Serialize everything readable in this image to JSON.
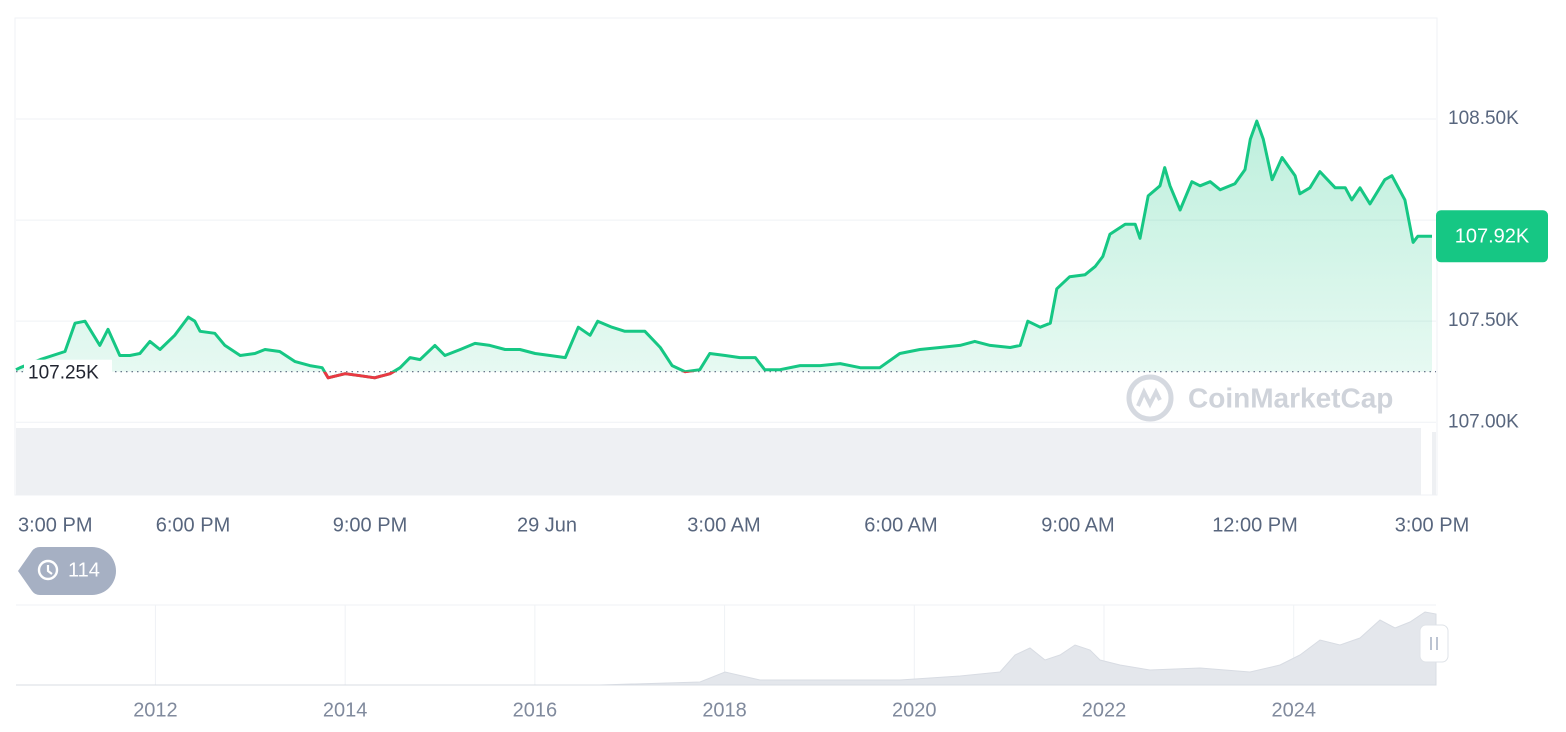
{
  "chart_data": {
    "type": "line",
    "x": [
      0,
      0.07,
      0.41,
      0.83,
      1.0,
      1.17,
      1.42,
      1.56,
      1.76,
      1.93,
      2.1,
      2.27,
      2.44,
      2.69,
      2.92,
      3.03,
      3.12,
      3.37,
      3.54,
      3.8,
      4.05,
      4.22,
      4.47,
      4.73,
      4.98,
      5.19,
      5.29,
      5.58,
      5.83,
      6.08,
      6.34,
      6.51,
      6.68,
      6.85,
      7.1,
      7.27,
      7.53,
      7.78,
      8.03,
      8.29,
      8.54,
      8.8,
      9.05,
      9.31,
      9.53,
      9.73,
      9.86,
      10.1,
      10.32,
      10.66,
      10.92,
      11.12,
      11.34,
      11.59,
      11.76,
      12.02,
      12.27,
      12.53,
      12.69,
      12.95,
      13.29,
      13.63,
      13.97,
      14.31,
      14.64,
      14.98,
      15.32,
      15.66,
      16.0,
      16.25,
      16.51,
      16.85,
      17.02,
      17.15,
      17.36,
      17.53,
      17.64,
      17.86,
      18.12,
      18.29,
      18.42,
      18.54,
      18.8,
      18.97,
      19.05,
      19.19,
      19.39,
      19.47,
      19.56,
      19.73,
      19.93,
      20.07,
      20.24,
      20.41,
      20.66,
      20.83,
      20.92,
      21.03,
      21.14,
      21.29,
      21.46,
      21.68,
      21.76,
      21.93,
      22.1,
      22.36,
      22.53,
      22.64,
      22.78,
      22.95,
      23.2,
      23.32,
      23.54,
      23.68,
      23.76,
      24.0
    ],
    "values": [
      107.26,
      107.27,
      107.31,
      107.35,
      107.49,
      107.5,
      107.38,
      107.46,
      107.33,
      107.33,
      107.34,
      107.4,
      107.36,
      107.43,
      107.52,
      107.5,
      107.45,
      107.44,
      107.38,
      107.33,
      107.34,
      107.36,
      107.35,
      107.3,
      107.28,
      107.27,
      107.22,
      107.24,
      107.23,
      107.22,
      107.24,
      107.27,
      107.32,
      107.31,
      107.38,
      107.33,
      107.36,
      107.39,
      107.38,
      107.36,
      107.36,
      107.34,
      107.33,
      107.32,
      107.47,
      107.43,
      107.5,
      107.47,
      107.45,
      107.45,
      107.37,
      107.28,
      107.25,
      107.26,
      107.34,
      107.33,
      107.32,
      107.32,
      107.26,
      107.26,
      107.28,
      107.28,
      107.29,
      107.27,
      107.27,
      107.34,
      107.36,
      107.37,
      107.38,
      107.4,
      107.38,
      107.37,
      107.38,
      107.5,
      107.47,
      107.49,
      107.66,
      107.72,
      107.73,
      107.77,
      107.82,
      107.93,
      107.98,
      107.98,
      107.91,
      108.12,
      108.17,
      108.26,
      108.17,
      108.05,
      108.19,
      108.17,
      108.19,
      108.15,
      108.18,
      108.25,
      108.4,
      108.49,
      108.4,
      108.2,
      108.31,
      108.22,
      108.13,
      108.16,
      108.24,
      108.16,
      108.16,
      108.1,
      108.16,
      108.08,
      108.2,
      108.22,
      108.1,
      107.89,
      107.92,
      107.92
    ],
    "color": "#16c784",
    "down_color": "#ea3943",
    "xlim": [
      0,
      24
    ],
    "xticks": [
      {
        "value": 0,
        "label": "3:00 PM"
      },
      {
        "value": 3,
        "label": "6:00 PM"
      },
      {
        "value": 6,
        "label": "9:00 PM"
      },
      {
        "value": 9,
        "label": "29 Jun"
      },
      {
        "value": 12,
        "label": "3:00 AM"
      },
      {
        "value": 15,
        "label": "6:00 AM"
      },
      {
        "value": 18,
        "label": "9:00 AM"
      },
      {
        "value": 21,
        "label": "12:00 PM"
      },
      {
        "value": 24,
        "label": "3:00 PM"
      }
    ],
    "ylim": [
      106.64,
      109
    ],
    "yticks": [
      {
        "value": 107,
        "label": "107.00K"
      },
      {
        "value": 107.5,
        "label": "107.50K"
      },
      {
        "value": 108,
        "label": null
      },
      {
        "value": 108.5,
        "label": "108.50K"
      }
    ],
    "grid": true,
    "baseline": {
      "value": 107.25,
      "label": "107.25K"
    },
    "current": {
      "value": 107.92,
      "label": "107.92K"
    },
    "watermark": "CoinMarketCap",
    "badge": 114,
    "navigator": {
      "xlim": [
        2010.53,
        2025.5
      ],
      "xticks": [
        2012,
        2014,
        2016,
        2018,
        2020,
        2022,
        2024
      ]
    }
  }
}
